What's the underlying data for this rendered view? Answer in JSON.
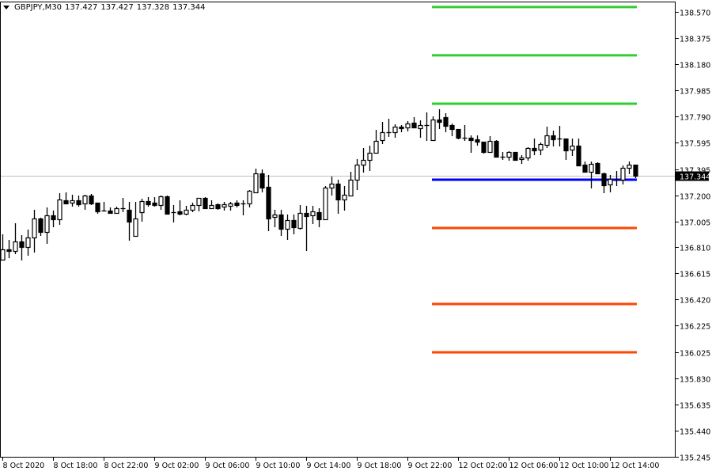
{
  "header": {
    "symbol": "GBPJPY,M30",
    "open": "137.427",
    "high": "137.427",
    "low": "137.328",
    "close": "137.344",
    "menu_icon": "triangle-down-icon"
  },
  "chart_data": {
    "type": "candlestick",
    "symbol": "GBPJPY",
    "timeframe": "M30",
    "ylim": [
      135.245,
      138.57
    ],
    "y_ticks": [
      "138.570",
      "138.375",
      "138.180",
      "137.985",
      "137.790",
      "137.595",
      "137.395",
      "137.200",
      "137.005",
      "136.810",
      "136.615",
      "136.420",
      "136.225",
      "136.025",
      "135.830",
      "135.635",
      "135.440",
      "135.245"
    ],
    "x_ticks": [
      "8 Oct 2020",
      "8 Oct 18:00",
      "8 Oct 22:00",
      "9 Oct 02:00",
      "9 Oct 06:00",
      "9 Oct 10:00",
      "9 Oct 14:00",
      "9 Oct 18:00",
      "9 Oct 22:00",
      "12 Oct 02:00",
      "12 Oct 06:00",
      "12 Oct 10:00",
      "12 Oct 14:00"
    ],
    "candles_per_x_tick": 8,
    "bid_price": "137.344",
    "grid": false,
    "colors": {
      "bull_body": "#ffffff",
      "bear_body": "#000000",
      "outline": "#000000",
      "bid_line": "#c0c0c0",
      "bid_label_bg": "#000000"
    },
    "levels": [
      {
        "price": 138.606,
        "color": "#32cd32",
        "start_candle": 68
      },
      {
        "price": 138.245,
        "color": "#32cd32",
        "start_candle": 68
      },
      {
        "price": 137.884,
        "color": "#32cd32",
        "start_candle": 68
      },
      {
        "price": 137.316,
        "color": "#0000ff",
        "start_candle": 68
      },
      {
        "price": 136.955,
        "color": "#ff4500",
        "start_candle": 68
      },
      {
        "price": 136.387,
        "color": "#ff4500",
        "start_candle": 68
      },
      {
        "price": 136.026,
        "color": "#ff4500",
        "start_candle": 68
      }
    ],
    "ohlc_fields": [
      "open",
      "high",
      "low",
      "close"
    ],
    "candles": [
      [
        136.718,
        136.907,
        136.712,
        136.795
      ],
      [
        136.795,
        136.866,
        136.73,
        136.783
      ],
      [
        136.783,
        136.99,
        136.759,
        136.854
      ],
      [
        136.854,
        136.901,
        136.712,
        136.813
      ],
      [
        136.813,
        136.943,
        136.748,
        136.884
      ],
      [
        136.884,
        137.091,
        136.771,
        137.026
      ],
      [
        137.026,
        137.032,
        136.896,
        136.925
      ],
      [
        136.925,
        137.109,
        136.836,
        137.049
      ],
      [
        137.049,
        137.085,
        136.961,
        137.02
      ],
      [
        137.02,
        137.215,
        136.978,
        137.168
      ],
      [
        137.162,
        137.221,
        137.132,
        137.138
      ],
      [
        137.144,
        137.203,
        137.114,
        137.162
      ],
      [
        137.162,
        137.197,
        137.114,
        137.132
      ],
      [
        137.138,
        137.203,
        137.091,
        137.197
      ],
      [
        137.197,
        137.209,
        137.126,
        137.138
      ],
      [
        137.144,
        137.144,
        137.061,
        137.079
      ],
      [
        137.085,
        137.15,
        137.079,
        137.085
      ],
      [
        137.085,
        137.109,
        137.067,
        137.067
      ],
      [
        137.067,
        137.114,
        137.067,
        137.103
      ],
      [
        137.103,
        137.18,
        137.073,
        137.103
      ],
      [
        137.091,
        137.15,
        136.86,
        137.002
      ],
      [
        136.896,
        137.15,
        136.896,
        137.026
      ],
      [
        137.073,
        137.174,
        137.002,
        137.156
      ],
      [
        137.156,
        137.185,
        137.114,
        137.132
      ],
      [
        137.144,
        137.185,
        137.114,
        137.126
      ],
      [
        137.126,
        137.197,
        137.091,
        137.191
      ],
      [
        137.191,
        137.197,
        137.061,
        137.061
      ],
      [
        137.073,
        137.126,
        136.996,
        137.073
      ],
      [
        137.079,
        137.162,
        137.049,
        137.061
      ],
      [
        137.061,
        137.12,
        137.049,
        137.091
      ],
      [
        137.091,
        137.144,
        137.073,
        137.126
      ],
      [
        137.126,
        137.18,
        137.079,
        137.18
      ],
      [
        137.18,
        137.185,
        137.097,
        137.103
      ],
      [
        137.103,
        137.162,
        137.097,
        137.126
      ],
      [
        137.132,
        137.138,
        137.091,
        137.103
      ],
      [
        137.114,
        137.15,
        137.085,
        137.132
      ],
      [
        137.12,
        137.15,
        137.085,
        137.138
      ],
      [
        137.144,
        137.162,
        137.109,
        137.126
      ],
      [
        137.138,
        137.162,
        137.049,
        137.138
      ],
      [
        137.138,
        137.239,
        137.109,
        137.233
      ],
      [
        137.221,
        137.398,
        137.221,
        137.363
      ],
      [
        137.363,
        137.393,
        137.221,
        137.256
      ],
      [
        137.262,
        137.351,
        136.931,
        137.026
      ],
      [
        137.037,
        137.091,
        136.961,
        137.055
      ],
      [
        137.055,
        137.091,
        136.896,
        136.949
      ],
      [
        136.949,
        137.055,
        136.866,
        137.014
      ],
      [
        137.014,
        137.055,
        136.907,
        136.961
      ],
      [
        136.955,
        137.126,
        136.943,
        137.067
      ],
      [
        137.067,
        137.12,
        136.783,
        137.043
      ],
      [
        137.049,
        137.12,
        136.984,
        137.079
      ],
      [
        137.073,
        137.103,
        136.961,
        137.02
      ],
      [
        137.02,
        137.268,
        137.02,
        137.256
      ],
      [
        137.256,
        137.339,
        137.197,
        137.286
      ],
      [
        137.286,
        137.316,
        137.061,
        137.168
      ],
      [
        137.168,
        137.268,
        137.085,
        137.203
      ],
      [
        137.197,
        137.375,
        137.197,
        137.316
      ],
      [
        137.316,
        137.469,
        137.239,
        137.428
      ],
      [
        137.428,
        137.552,
        137.369,
        137.464
      ],
      [
        137.464,
        137.57,
        137.381,
        137.517
      ],
      [
        137.517,
        137.688,
        137.511,
        137.606
      ],
      [
        137.611,
        137.748,
        137.582,
        137.671
      ],
      [
        137.671,
        137.771,
        137.635,
        137.671
      ],
      [
        137.671,
        137.73,
        137.629,
        137.712
      ],
      [
        137.712,
        137.724,
        137.671,
        137.7
      ],
      [
        137.706,
        137.753,
        137.677,
        137.736
      ],
      [
        137.742,
        137.783,
        137.7,
        137.706
      ],
      [
        137.7,
        137.759,
        137.629,
        137.724
      ],
      [
        137.724,
        137.819,
        137.606,
        137.724
      ],
      [
        137.611,
        137.789,
        137.611,
        137.765
      ],
      [
        137.765,
        137.842,
        137.694,
        137.748
      ],
      [
        137.783,
        137.813,
        137.671,
        137.718
      ],
      [
        137.724,
        137.736,
        137.641,
        137.694
      ],
      [
        137.694,
        137.694,
        137.617,
        137.629
      ],
      [
        137.629,
        137.724,
        137.606,
        137.629
      ],
      [
        137.629,
        137.647,
        137.517,
        137.611
      ],
      [
        137.617,
        137.647,
        137.57,
        137.6
      ],
      [
        137.6,
        137.6,
        137.511,
        137.523
      ],
      [
        137.523,
        137.641,
        137.517,
        137.606
      ],
      [
        137.606,
        137.611,
        137.487,
        137.487
      ],
      [
        137.487,
        137.523,
        137.464,
        137.487
      ],
      [
        137.487,
        137.529,
        137.458,
        137.523
      ],
      [
        137.523,
        137.523,
        137.458,
        137.464
      ],
      [
        137.469,
        137.499,
        137.434,
        137.481
      ],
      [
        137.481,
        137.558,
        137.458,
        137.552
      ],
      [
        137.552,
        137.623,
        137.499,
        137.535
      ],
      [
        137.54,
        137.594,
        137.499,
        137.582
      ],
      [
        137.576,
        137.712,
        137.552,
        137.647
      ],
      [
        137.647,
        137.682,
        137.564,
        137.617
      ],
      [
        137.623,
        137.718,
        137.564,
        137.623
      ],
      [
        137.623,
        137.623,
        137.464,
        137.535
      ],
      [
        137.54,
        137.623,
        137.493,
        137.57
      ],
      [
        137.57,
        137.623,
        137.416,
        137.422
      ],
      [
        137.428,
        137.452,
        137.375,
        137.375
      ],
      [
        137.375,
        137.452,
        137.251,
        137.434
      ],
      [
        137.44,
        137.446,
        137.357,
        137.363
      ],
      [
        137.363,
        137.369,
        137.215,
        137.274
      ],
      [
        137.28,
        137.351,
        137.221,
        137.322
      ],
      [
        137.316,
        137.381,
        137.268,
        137.316
      ],
      [
        137.316,
        137.422,
        137.28,
        137.404
      ],
      [
        137.404,
        137.452,
        137.357,
        137.428
      ],
      [
        137.427,
        137.427,
        137.328,
        137.344
      ]
    ]
  }
}
